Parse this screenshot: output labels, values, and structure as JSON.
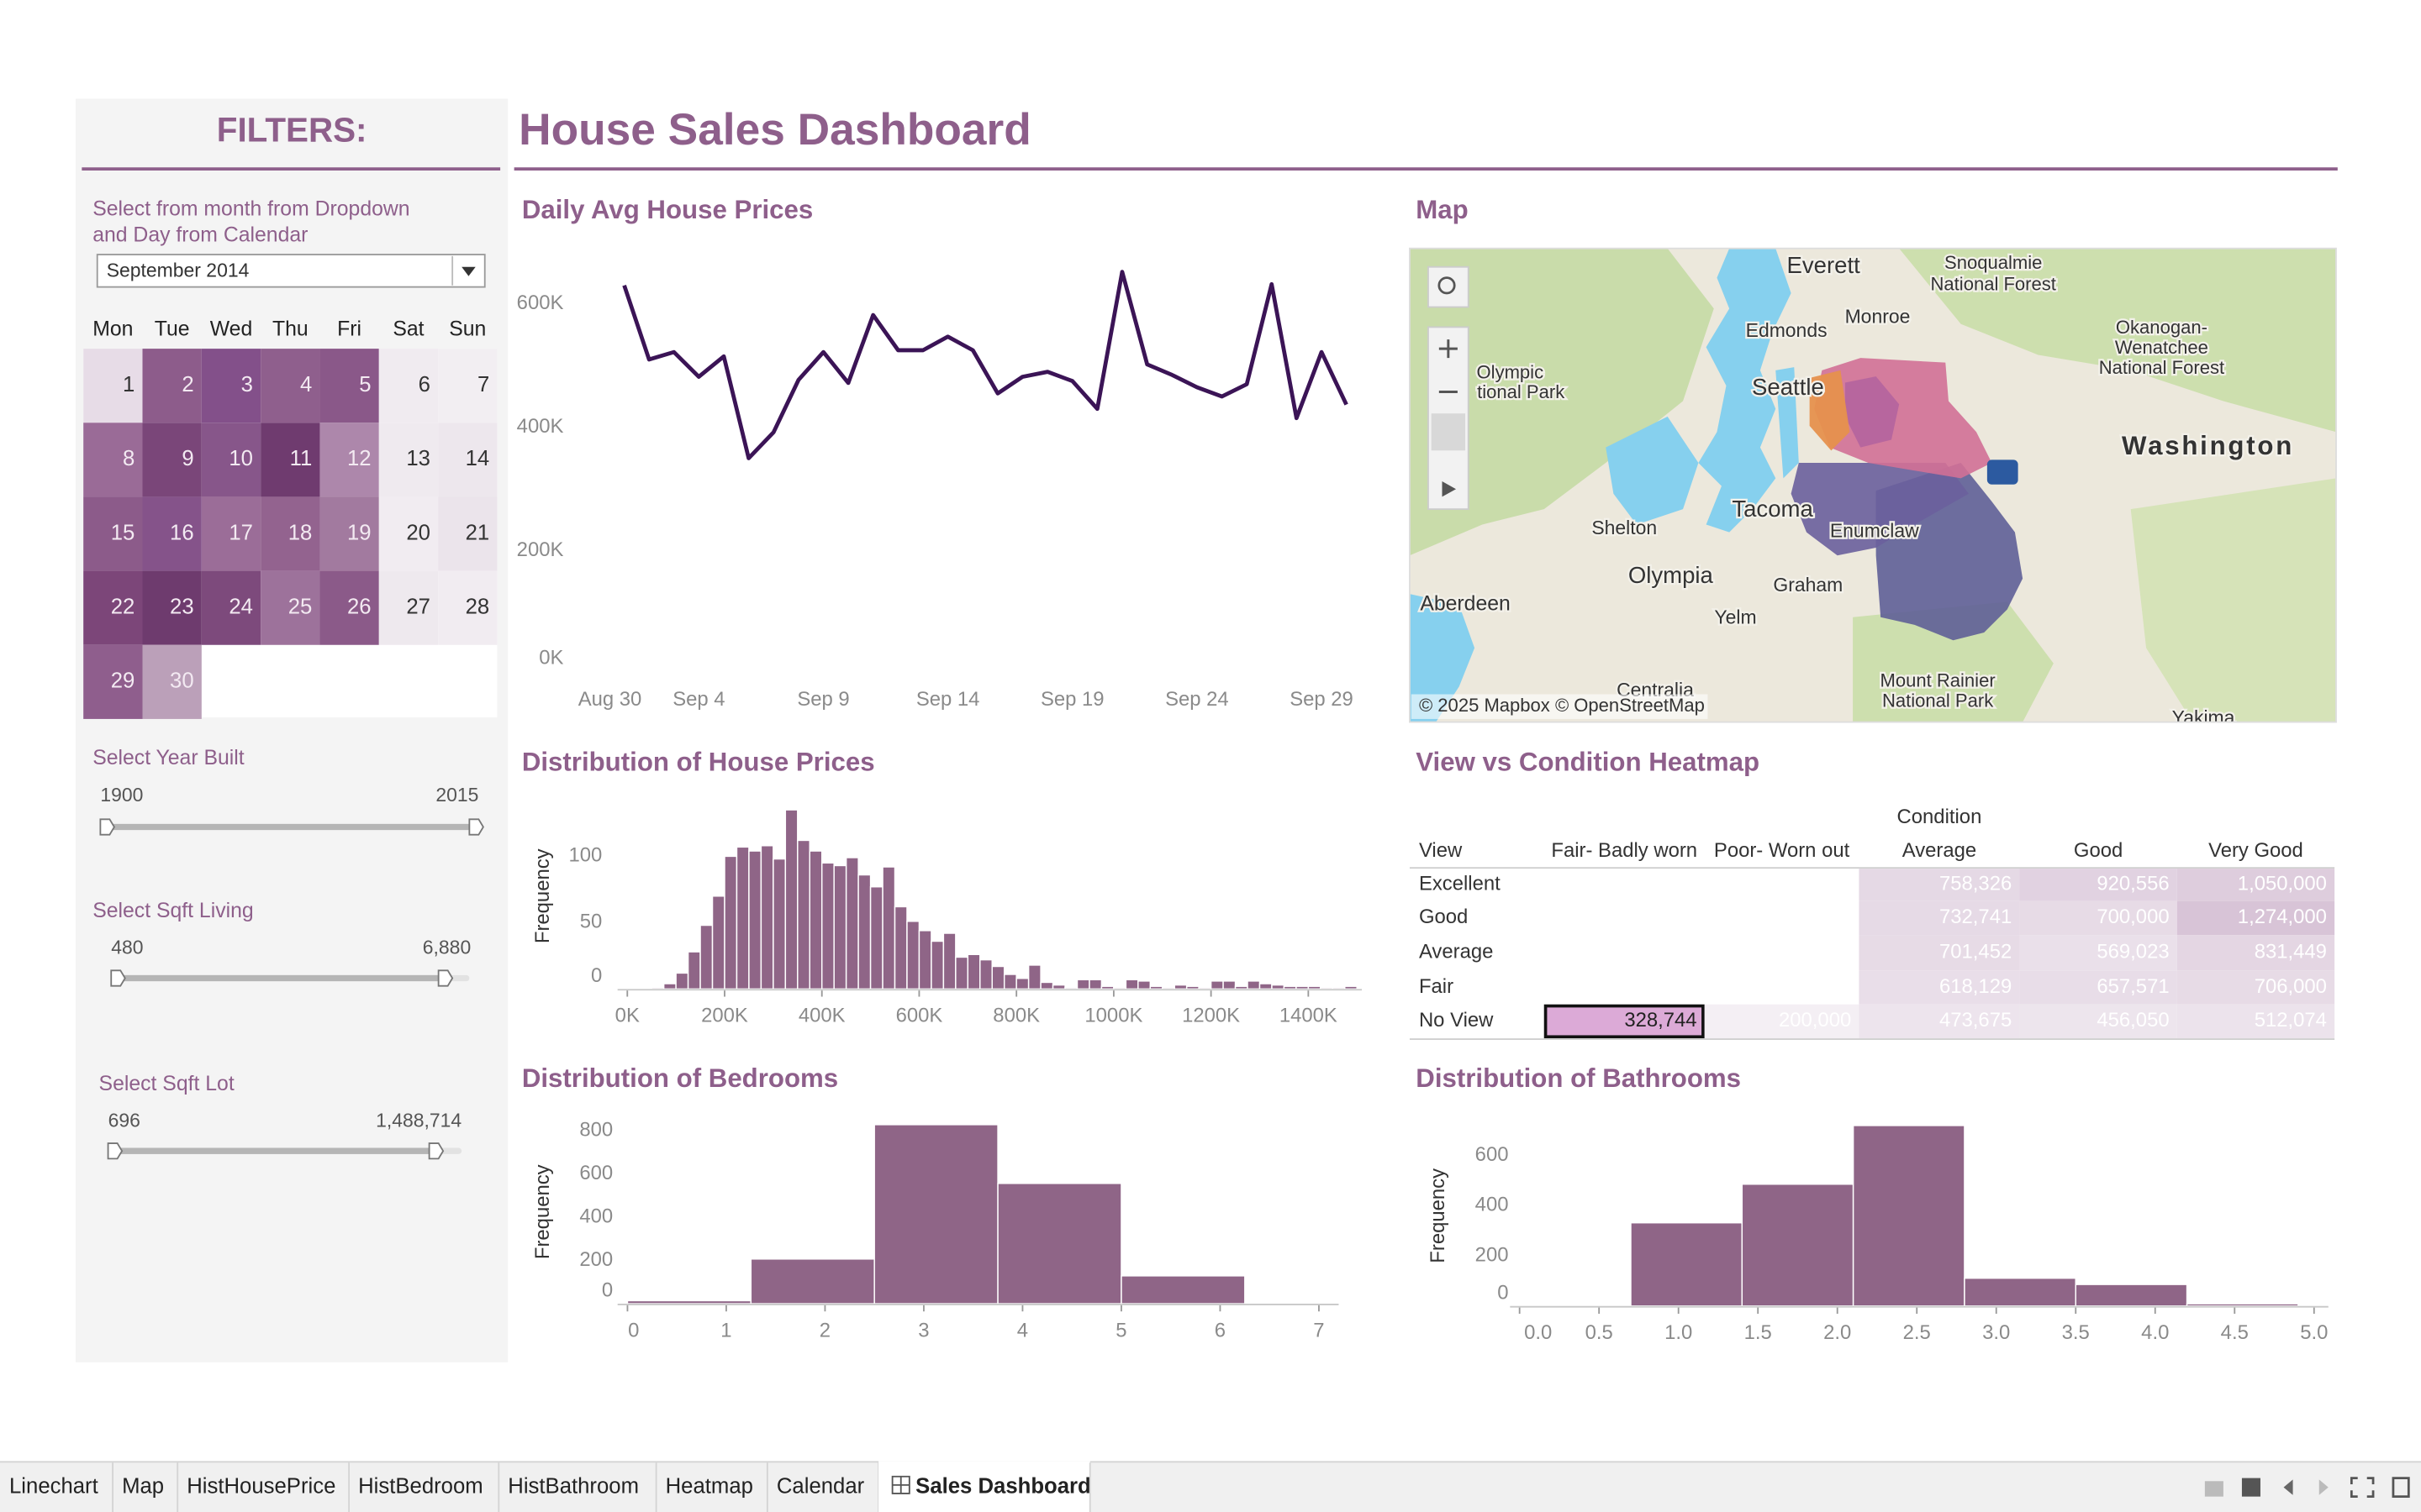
{
  "title": "House Sales Dashboard",
  "filters": {
    "title": "FILTERS:",
    "prompt": [
      "Select from month from Dropdown",
      "and Day from Calendar"
    ],
    "month": "September 2014",
    "weekdays": [
      "Mon",
      "Tue",
      "Wed",
      "Thu",
      "Fri",
      "Sat",
      "Sun"
    ],
    "days": [
      1,
      2,
      3,
      4,
      5,
      6,
      7,
      8,
      9,
      10,
      11,
      12,
      13,
      14,
      15,
      16,
      17,
      18,
      19,
      20,
      21,
      22,
      23,
      24,
      25,
      26,
      27,
      28,
      29,
      30
    ],
    "day_colors": [
      "#e7dce7",
      "#8d5c8b",
      "#83508a",
      "#8f5f8d",
      "#8a5889",
      "#f0ebf0",
      "#f2eef2",
      "#9a6b97",
      "#7a4679",
      "#87568a",
      "#6f3b6f",
      "#ad87ab",
      "#efeaef",
      "#ede7ed",
      "#8c5b8a",
      "#85538a",
      "#9b6d98",
      "#93638f",
      "#a27a9f",
      "#f1ecf1",
      "#ebe4eb",
      "#7c4679",
      "#6e3b6e",
      "#7d4a7c",
      "#9d729b",
      "#8b5a89",
      "#eee9ee",
      "#f1ecf1",
      "#8f5e8d",
      "#bba0b9"
    ],
    "sliders": [
      {
        "label": "Select Year Built",
        "min": "1900",
        "max": "2015"
      },
      {
        "label": "Select Sqft Living",
        "min": "480",
        "max": "6,880"
      },
      {
        "label": "Select Sqft Lot",
        "min": "696",
        "max": "1,488,714"
      }
    ]
  },
  "map": {
    "title": "Map",
    "labels": [
      "Everett",
      "Snoqualmie",
      "National Forest",
      "Monroe",
      "Edmonds",
      "Okanogan-",
      "Wenatchee",
      "National Forest",
      "Olympic",
      "tional Park",
      "Seattle",
      "Washington",
      "Tacoma",
      "Enumclaw",
      "Shelton",
      "Olympia",
      "Graham",
      "Aberdeen",
      "Yelm",
      "Centralia",
      "Mount Rainier",
      "National Park",
      "Yakima"
    ],
    "attribution": "© 2025 Mapbox © OpenStreetMap"
  },
  "chart_data": [
    {
      "type": "line",
      "title": "Daily Avg House Prices",
      "color": "#3b1456",
      "x": [
        "Sep 1",
        "Sep 2",
        "Sep 3",
        "Sep 4",
        "Sep 5",
        "Sep 6",
        "Sep 7",
        "Sep 8",
        "Sep 9",
        "Sep 10",
        "Sep 11",
        "Sep 12",
        "Sep 13",
        "Sep 14",
        "Sep 15",
        "Sep 16",
        "Sep 17",
        "Sep 18",
        "Sep 19",
        "Sep 20",
        "Sep 21",
        "Sep 22",
        "Sep 23",
        "Sep 24",
        "Sep 25",
        "Sep 26",
        "Sep 27",
        "Sep 28",
        "Sep 29",
        "Sep 30"
      ],
      "values": [
        630000,
        510000,
        522000,
        482000,
        515000,
        350000,
        392000,
        477000,
        522000,
        472000,
        582000,
        525000,
        525000,
        547000,
        525000,
        455000,
        482000,
        490000,
        475000,
        430000,
        652000,
        502000,
        485000,
        465000,
        450000,
        470000,
        632000,
        415000,
        522000,
        437000
      ],
      "xlim": [
        "Aug 30",
        "Sep 30"
      ],
      "xticks": [
        "Aug 30",
        "Sep 4",
        "Sep 9",
        "Sep 14",
        "Sep 19",
        "Sep 24",
        "Sep 29"
      ],
      "ylim": [
        0,
        690000
      ],
      "yticks": [
        {
          "value": 0,
          "label": "0K"
        },
        {
          "value": 200000,
          "label": "200K"
        },
        {
          "value": 400000,
          "label": "400K"
        },
        {
          "value": 600000,
          "label": "600K"
        }
      ]
    },
    {
      "type": "histogram",
      "title": "Distribution of House Prices",
      "y_label": "Frequency",
      "color": "#8f6587",
      "bins": [
        50000,
        75000,
        100000,
        125000,
        150000,
        175000,
        200000,
        225000,
        250000,
        275000,
        300000,
        325000,
        350000,
        375000,
        400000,
        425000,
        450000,
        475000,
        500000,
        525000,
        550000,
        575000,
        600000,
        625000,
        650000,
        675000,
        700000,
        725000,
        750000,
        775000,
        800000,
        825000,
        850000,
        875000,
        900000,
        925000,
        950000,
        975000,
        1000000,
        1025000,
        1050000,
        1075000,
        1100000,
        1125000,
        1150000,
        1175000,
        1200000,
        1225000,
        1250000,
        1275000,
        1300000,
        1325000,
        1350000,
        1375000,
        1400000,
        1425000,
        1450000,
        1475000,
        1500000
      ],
      "values": [
        1,
        4,
        12,
        28,
        48,
        70,
        100,
        107,
        104,
        108,
        98,
        135,
        112,
        104,
        95,
        93,
        99,
        86,
        77,
        92,
        62,
        51,
        44,
        36,
        42,
        24,
        26,
        22,
        17,
        11,
        8,
        18,
        5,
        3,
        1,
        7,
        7,
        2,
        1,
        7,
        6,
        2,
        1,
        3,
        2,
        1,
        6,
        6,
        2,
        6,
        4,
        3,
        2,
        2,
        2,
        1,
        1,
        2
      ],
      "xlim": [
        -20000,
        1510000
      ],
      "xticks": [
        {
          "value": 0,
          "label": "0K"
        },
        {
          "value": 200000,
          "label": "200K"
        },
        {
          "value": 400000,
          "label": "400K"
        },
        {
          "value": 600000,
          "label": "600K"
        },
        {
          "value": 800000,
          "label": "800K"
        },
        {
          "value": 1000000,
          "label": "1000K"
        },
        {
          "value": 1200000,
          "label": "1200K"
        },
        {
          "value": 1400000,
          "label": "1400K"
        }
      ],
      "ylim": [
        0,
        140
      ],
      "yticks": [
        0,
        50,
        100
      ]
    },
    {
      "type": "histogram",
      "title": "Distribution of Bedrooms",
      "y_label": "Frequency",
      "color": "#8f6587",
      "bins": [
        0,
        1.25,
        2.5,
        3.75,
        5,
        6.25
      ],
      "values": [
        14,
        207,
        829,
        557,
        129
      ],
      "xlim": [
        -0.1,
        7.2
      ],
      "xticks": [
        0,
        1,
        2,
        3,
        4,
        5,
        6,
        7
      ],
      "ylim": [
        0,
        850
      ],
      "yticks": [
        0,
        200,
        400,
        600,
        800
      ]
    },
    {
      "type": "histogram",
      "title": "Distribution of Bathrooms",
      "y_label": "Frequency",
      "color": "#8f6587",
      "bins": [
        0.7,
        1.4,
        2.1,
        2.8,
        3.5,
        4.2,
        4.9
      ],
      "values": [
        332,
        486,
        720,
        111,
        86,
        9
      ],
      "xlim": [
        -0.06,
        5.09
      ],
      "xticks": [
        {
          "value": 0,
          "label": "0.0"
        },
        0.5,
        {
          "value": 1,
          "label": "1.0"
        },
        1.5,
        {
          "value": 2,
          "label": "2.0"
        },
        2.5,
        {
          "value": 3,
          "label": "3.0"
        },
        3.5,
        {
          "value": 4,
          "label": "4.0"
        },
        4.5,
        {
          "value": 5,
          "label": "5.0"
        }
      ],
      "ylim": [
        0,
        720
      ],
      "yticks": [
        0,
        200,
        400,
        600
      ]
    },
    {
      "type": "heatmap",
      "title": "View vs Condition Heatmap",
      "x_title": "Condition",
      "y_title": "View",
      "columns": [
        "Fair- Badly worn",
        "Poor- Worn out",
        "Average",
        "Good",
        "Very Good"
      ],
      "rows": [
        "Excellent",
        "Good",
        "Average",
        "Fair",
        "No View"
      ],
      "values": [
        [
          null,
          null,
          758326,
          920556,
          1050000
        ],
        [
          null,
          null,
          732741,
          700000,
          1274000
        ],
        [
          null,
          null,
          701452,
          569023,
          831449
        ],
        [
          null,
          null,
          618129,
          657571,
          706000
        ],
        [
          328744,
          200000,
          473675,
          456050,
          512074
        ]
      ],
      "value_labels": [
        [
          null,
          null,
          "758,326",
          "920,556",
          "1,050,000"
        ],
        [
          null,
          null,
          "732,741",
          "700,000",
          "1,274,000"
        ],
        [
          null,
          null,
          "701,452",
          "569,023",
          "831,449"
        ],
        [
          null,
          null,
          "618,129",
          "657,571",
          "706,000"
        ],
        [
          "328,744",
          "200,000",
          "473,675",
          "456,050",
          "512,074"
        ]
      ],
      "colors": [
        "#f4eff4",
        "#d8c4d7"
      ],
      "highlight": {
        "row": 4,
        "col": 0,
        "color": "#dcaad7"
      }
    }
  ],
  "tabs": [
    "Linechart",
    "Map",
    "HistHousePrice",
    "HistBedroom",
    "HistBathroom",
    "Heatmap",
    "Calendar",
    "Sales Dashboard"
  ],
  "active_tab": 7
}
